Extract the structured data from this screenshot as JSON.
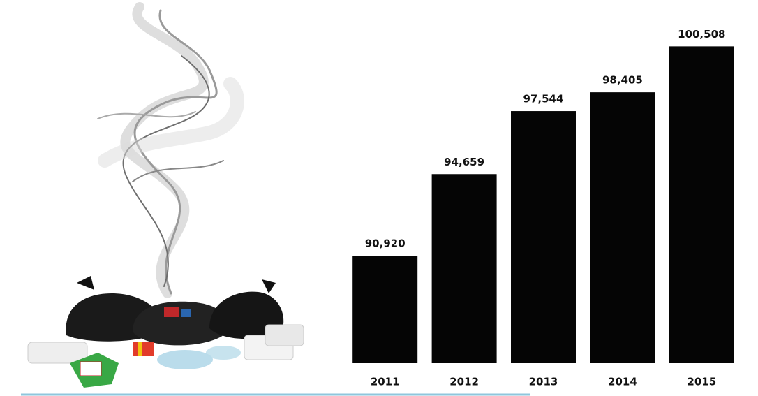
{
  "chart_data": {
    "type": "bar",
    "categories": [
      "2011",
      "2012",
      "2013",
      "2014",
      "2015"
    ],
    "values": [
      90920,
      94659,
      97544,
      98405,
      100508
    ],
    "value_labels": [
      "90,920",
      "94,659",
      "97,544",
      "98,405",
      "100,508"
    ],
    "color": "#050505",
    "ylim": [
      86000,
      101000
    ]
  }
}
